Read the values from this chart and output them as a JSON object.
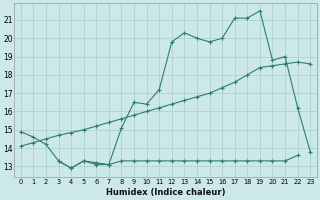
{
  "line1_x": [
    0,
    1,
    2,
    3,
    4,
    5,
    6,
    7,
    8,
    9,
    10,
    11,
    12,
    13,
    14,
    15,
    16,
    17,
    18,
    19,
    20,
    21,
    22,
    23
  ],
  "line1_y": [
    14.9,
    14.6,
    14.2,
    13.3,
    12.9,
    13.3,
    13.1,
    13.1,
    15.1,
    16.5,
    16.4,
    17.2,
    19.8,
    20.3,
    20.0,
    19.8,
    20.0,
    21.1,
    21.1,
    21.5,
    18.8,
    19.0,
    16.2,
    13.8
  ],
  "line2_x": [
    0,
    1,
    2,
    3,
    4,
    5,
    6,
    7,
    8,
    9,
    10,
    11,
    12,
    13,
    14,
    15,
    16,
    17,
    18,
    19,
    20,
    21,
    22,
    23
  ],
  "line2_y": [
    14.1,
    14.3,
    14.5,
    14.7,
    14.85,
    15.0,
    15.2,
    15.4,
    15.6,
    15.8,
    16.0,
    16.2,
    16.4,
    16.6,
    16.8,
    17.0,
    17.3,
    17.6,
    18.0,
    18.4,
    18.5,
    18.6,
    18.7,
    18.6
  ],
  "line3_x": [
    3,
    4,
    5,
    6,
    7,
    8,
    9,
    10,
    11,
    12,
    13,
    14,
    15,
    16,
    17,
    18,
    19,
    20,
    21,
    22
  ],
  "line3_y": [
    13.3,
    12.9,
    13.3,
    13.2,
    13.1,
    13.3,
    13.3,
    13.3,
    13.3,
    13.3,
    13.3,
    13.3,
    13.3,
    13.3,
    13.3,
    13.3,
    13.3,
    13.3,
    13.3,
    13.6
  ],
  "line_color": "#2e7d6e",
  "bg_color": "#cce8e8",
  "grid_color": "#aacece",
  "xlabel": "Humidex (Indice chaleur)",
  "ylabel_ticks": [
    13,
    14,
    15,
    16,
    17,
    18,
    19,
    20,
    21
  ],
  "xlim": [
    -0.5,
    23.5
  ],
  "ylim": [
    12.4,
    21.9
  ],
  "figsize": [
    3.2,
    2.0
  ],
  "dpi": 100
}
